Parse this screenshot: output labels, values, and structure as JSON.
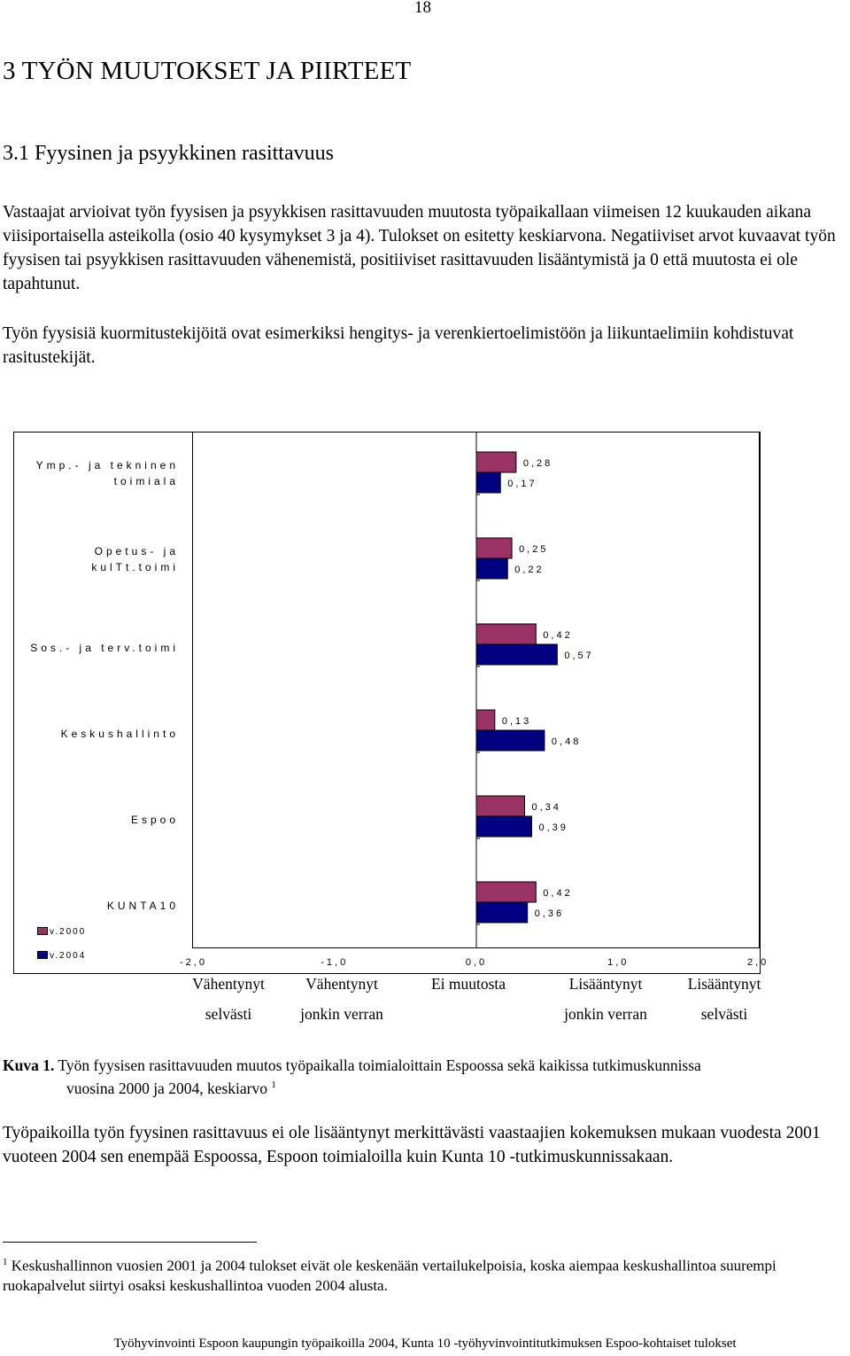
{
  "page_number": "18",
  "heading_main": "3 TYÖN MUUTOKSET JA PIIRTEET",
  "heading_sub": "3.1 Fyysinen ja psyykkinen rasittavuus",
  "paragraph1": "Vastaajat arvioivat työn fyysisen ja psyykkisen rasittavuuden muutosta työpaikallaan viimeisen 12 kuukauden aikana viisiportaisella asteikolla (osio 40 kysymykset 3 ja 4). Tulokset on esitetty keskiarvona. Negatiiviset arvot kuvaavat työn fyysisen tai psyykkisen rasittavuuden vähenemistä, positiiviset rasittavuuden lisääntymistä ja 0 että muutosta ei ole tapahtunut.",
  "paragraph2": "Työn fyysisiä kuormitustekijöitä ovat esimerkiksi hengitys- ja verenkiertoelimistöön ja liikuntaelimiin kohdistuvat rasitustekijät.",
  "chart_data": {
    "type": "bar",
    "orientation": "horizontal",
    "categories": [
      "Ymp.- ja tekninen toimiala",
      "Opetus- ja kulTt.toimi",
      "Sos.- ja terv.toimi",
      "Keskushallinto",
      "Espoo",
      "KUNTA10"
    ],
    "category_labels": [
      "Ymp.- ja tekninen\ntoimiala",
      "Opetus- ja\nkulTt.toimi",
      "Sos.- ja terv.toimi",
      "Keskushallinto",
      "Espoo",
      "KUNTA10"
    ],
    "series": [
      {
        "name": "v.2000",
        "color": "#993366",
        "values": [
          0.28,
          0.25,
          0.42,
          0.13,
          0.34,
          0.42
        ],
        "labels": [
          "0,28",
          "0,25",
          "0,42",
          "0,13",
          "0,34",
          "0,42"
        ]
      },
      {
        "name": "v.2004",
        "color": "#000080",
        "values": [
          0.17,
          0.22,
          0.57,
          0.48,
          0.39,
          0.36
        ],
        "labels": [
          "0,17",
          "0,22",
          "0,57",
          "0,48",
          "0,39",
          "0,36"
        ]
      }
    ],
    "xlim": [
      -2.0,
      2.0
    ],
    "x_ticks": [
      -2.0,
      -1.0,
      0.0,
      1.0,
      2.0
    ],
    "x_tick_labels": [
      "-2,0",
      "-1,0",
      "0,0",
      "1,0",
      "2,0"
    ],
    "grid": false,
    "legend_placement": "bottom-left"
  },
  "scale_labels": [
    {
      "line1": "Vähentynyt",
      "line2": "selvästi"
    },
    {
      "line1": "Vähentynyt",
      "line2": "jonkin verran"
    },
    {
      "line1": "Ei muutosta",
      "line2": ""
    },
    {
      "line1": "Lisääntynyt",
      "line2": "jonkin verran"
    },
    {
      "line1": "Lisääntynyt",
      "line2": "selvästi"
    }
  ],
  "caption": {
    "lead": "Kuva 1.",
    "line1": "Työn fyysisen rasittavuuden muutos työpaikalla toimialoittain Espoossa sekä kaikissa tutkimuskunnissa",
    "line2": "vuosina 2000 ja 2004, keskiarvo",
    "footnote_ref": "1"
  },
  "paragraph3": "Työpaikoilla työn fyysinen rasittavuus ei ole lisääntynyt merkittävästi vaastaajien kokemuksen mukaan vuodesta 2001 vuoteen 2004 sen enempää Espoossa, Espoon toimialoilla kuin Kunta 10 -tutkimuskunnissakaan.",
  "footnote": {
    "mark": "1",
    "text": "Keskushallinnon vuosien 2001 ja 2004 tulokset eivät ole keskenään vertailukelpoisia, koska aiempaa keskushallintoa suurempi ruokapalvelut siirtyi osaksi keskushallintoa vuoden 2004 alusta."
  },
  "footer": "Työhyvinvointi Espoon kaupungin työpaikoilla 2004, Kunta 10 -työhyvinvointitutkimuksen Espoo-kohtaiset tulokset"
}
